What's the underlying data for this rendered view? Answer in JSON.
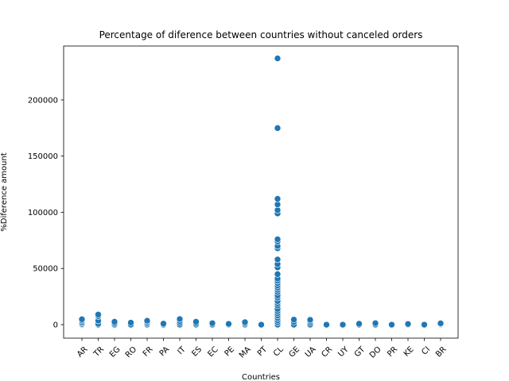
{
  "chart_data": {
    "type": "scatter",
    "title": "Percentage of diference between countries without canceled orders",
    "xlabel": "Countries",
    "ylabel": "%Diference amount",
    "categories": [
      "AR",
      "TR",
      "EG",
      "RO",
      "FR",
      "PA",
      "IT",
      "ES",
      "EC",
      "PE",
      "MA",
      "PT",
      "CL",
      "GE",
      "UA",
      "CR",
      "UY",
      "GT",
      "DO",
      "PR",
      "KE",
      "CI",
      "BR"
    ],
    "ylim": [
      -12000,
      248000
    ],
    "yticks": [
      0,
      50000,
      100000,
      150000,
      200000
    ],
    "ytick_labels": [
      "0",
      "50000",
      "100000",
      "150000",
      "200000"
    ],
    "grid": false,
    "color": "#1f77b4",
    "series": [
      {
        "name": "",
        "points": [
          {
            "x": "AR",
            "y": 0
          },
          {
            "x": "AR",
            "y": 600
          },
          {
            "x": "AR",
            "y": 1500
          },
          {
            "x": "AR",
            "y": 2600
          },
          {
            "x": "AR",
            "y": 3800
          },
          {
            "x": "AR",
            "y": 4800
          },
          {
            "x": "TR",
            "y": 0
          },
          {
            "x": "TR",
            "y": 800
          },
          {
            "x": "TR",
            "y": 3500
          },
          {
            "x": "TR",
            "y": 7500
          },
          {
            "x": "TR",
            "y": 9000
          },
          {
            "x": "EG",
            "y": 0
          },
          {
            "x": "EG",
            "y": 1200
          },
          {
            "x": "EG",
            "y": 2600
          },
          {
            "x": "RO",
            "y": 0
          },
          {
            "x": "RO",
            "y": 1800
          },
          {
            "x": "FR",
            "y": 0
          },
          {
            "x": "FR",
            "y": 1000
          },
          {
            "x": "FR",
            "y": 2200
          },
          {
            "x": "FR",
            "y": 3500
          },
          {
            "x": "PA",
            "y": 0
          },
          {
            "x": "PA",
            "y": 900
          },
          {
            "x": "IT",
            "y": 0
          },
          {
            "x": "IT",
            "y": 1500
          },
          {
            "x": "IT",
            "y": 3200
          },
          {
            "x": "IT",
            "y": 5000
          },
          {
            "x": "ES",
            "y": 0
          },
          {
            "x": "ES",
            "y": 1100
          },
          {
            "x": "ES",
            "y": 2600
          },
          {
            "x": "EC",
            "y": 0
          },
          {
            "x": "EC",
            "y": 1300
          },
          {
            "x": "PE",
            "y": 0
          },
          {
            "x": "PE",
            "y": 700
          },
          {
            "x": "MA",
            "y": 0
          },
          {
            "x": "MA",
            "y": 1000
          },
          {
            "x": "MA",
            "y": 2200
          },
          {
            "x": "PT",
            "y": 0
          },
          {
            "x": "CL",
            "y": 0
          },
          {
            "x": "CL",
            "y": 2000
          },
          {
            "x": "CL",
            "y": 4000
          },
          {
            "x": "CL",
            "y": 6000
          },
          {
            "x": "CL",
            "y": 8000
          },
          {
            "x": "CL",
            "y": 10000
          },
          {
            "x": "CL",
            "y": 12000
          },
          {
            "x": "CL",
            "y": 14000
          },
          {
            "x": "CL",
            "y": 17000
          },
          {
            "x": "CL",
            "y": 19000
          },
          {
            "x": "CL",
            "y": 21000
          },
          {
            "x": "CL",
            "y": 24000
          },
          {
            "x": "CL",
            "y": 26000
          },
          {
            "x": "CL",
            "y": 29000
          },
          {
            "x": "CL",
            "y": 31000
          },
          {
            "x": "CL",
            "y": 33000
          },
          {
            "x": "CL",
            "y": 35000
          },
          {
            "x": "CL",
            "y": 37000
          },
          {
            "x": "CL",
            "y": 39000
          },
          {
            "x": "CL",
            "y": 41000
          },
          {
            "x": "CL",
            "y": 45000
          },
          {
            "x": "CL",
            "y": 51000
          },
          {
            "x": "CL",
            "y": 54000
          },
          {
            "x": "CL",
            "y": 58000
          },
          {
            "x": "CL",
            "y": 68000
          },
          {
            "x": "CL",
            "y": 70000
          },
          {
            "x": "CL",
            "y": 74000
          },
          {
            "x": "CL",
            "y": 76000
          },
          {
            "x": "CL",
            "y": 99000
          },
          {
            "x": "CL",
            "y": 102000
          },
          {
            "x": "CL",
            "y": 107000
          },
          {
            "x": "CL",
            "y": 112000
          },
          {
            "x": "CL",
            "y": 175000
          },
          {
            "x": "CL",
            "y": 237000
          },
          {
            "x": "GE",
            "y": 0
          },
          {
            "x": "GE",
            "y": 2500
          },
          {
            "x": "GE",
            "y": 4500
          },
          {
            "x": "UA",
            "y": 0
          },
          {
            "x": "UA",
            "y": 1500
          },
          {
            "x": "UA",
            "y": 3200
          },
          {
            "x": "UA",
            "y": 4300
          },
          {
            "x": "CR",
            "y": 0
          },
          {
            "x": "UY",
            "y": 0
          },
          {
            "x": "GT",
            "y": 0
          },
          {
            "x": "GT",
            "y": 800
          },
          {
            "x": "DO",
            "y": 0
          },
          {
            "x": "DO",
            "y": 1300
          },
          {
            "x": "PR",
            "y": 0
          },
          {
            "x": "KE",
            "y": 0
          },
          {
            "x": "KE",
            "y": 600
          },
          {
            "x": "CI",
            "y": 0
          },
          {
            "x": "BR",
            "y": 0
          },
          {
            "x": "BR",
            "y": 600
          },
          {
            "x": "BR",
            "y": 1200
          }
        ]
      }
    ]
  }
}
